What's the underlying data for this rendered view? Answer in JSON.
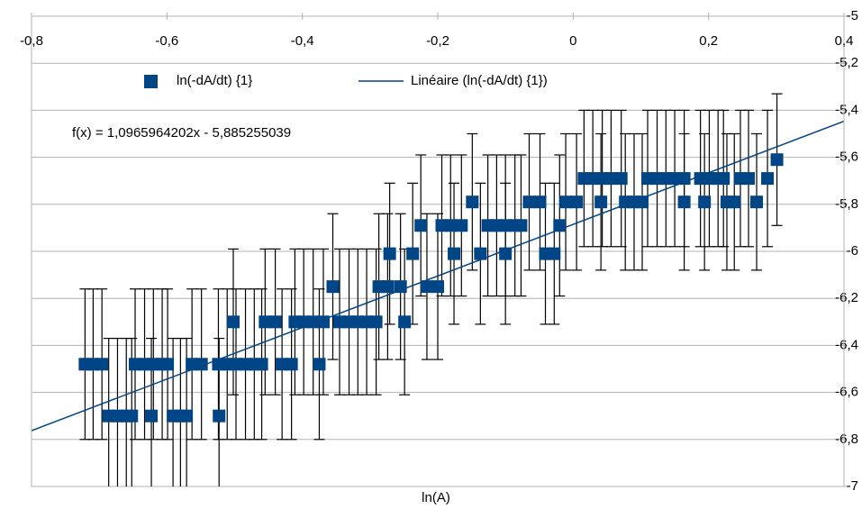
{
  "chart_data": {
    "type": "scatter",
    "xlabel": "ln(A)",
    "annotation": "f(x) = 1,0965964202x - 5,885255039",
    "xlim": [
      -0.8,
      0.4
    ],
    "ylim": [
      -7,
      -5
    ],
    "xticks": [
      {
        "value": -0.8,
        "label": "-0,8"
      },
      {
        "value": -0.6,
        "label": "-0,6"
      },
      {
        "value": -0.4,
        "label": "-0,4"
      },
      {
        "value": -0.2,
        "label": "-0,2"
      },
      0,
      {
        "value": 0.2,
        "label": "0,2"
      },
      {
        "value": 0.4,
        "label": "0,4"
      }
    ],
    "yticks": [
      -5,
      {
        "value": -5.2,
        "label": "-5,2"
      },
      {
        "value": -5.4,
        "label": "-5,4"
      },
      {
        "value": -5.6,
        "label": "-5,6"
      },
      {
        "value": -5.8,
        "label": "-5,8"
      },
      -6,
      {
        "value": -6.2,
        "label": "-6,2"
      },
      {
        "value": -6.4,
        "label": "-6,4"
      },
      {
        "value": -6.6,
        "label": "-6,6"
      },
      {
        "value": -6.8,
        "label": "-6,8"
      },
      -7
    ],
    "grid": true,
    "series": [
      {
        "name": "ln(-dA/dt) {1}",
        "color": "#004586",
        "x": [
          -0.721,
          -0.709,
          -0.696,
          -0.647,
          -0.633,
          -0.62,
          -0.607,
          -0.599,
          -0.563,
          -0.549,
          -0.524,
          -0.511,
          -0.498,
          -0.484,
          -0.471,
          -0.46,
          -0.43,
          -0.416,
          -0.375,
          -0.686,
          -0.673,
          -0.66,
          -0.652,
          -0.623,
          -0.591,
          -0.58,
          -0.571,
          -0.523,
          -0.502,
          -0.455,
          -0.44,
          -0.411,
          -0.398,
          -0.384,
          -0.369,
          -0.345,
          -0.331,
          -0.318,
          -0.305,
          -0.291,
          -0.249,
          -0.355,
          -0.287,
          -0.274,
          -0.255,
          -0.216,
          -0.2,
          -0.271,
          -0.237,
          -0.176,
          -0.137,
          -0.1,
          -0.041,
          -0.028,
          -0.225,
          -0.194,
          -0.181,
          -0.165,
          -0.126,
          -0.113,
          -0.1,
          -0.086,
          -0.077,
          -0.02,
          -0.149,
          -0.065,
          -0.049,
          -0.011,
          0.005,
          0.041,
          0.077,
          0.09,
          0.102,
          0.164,
          0.194,
          0.227,
          0.238,
          0.271,
          0.016,
          0.029,
          0.043,
          0.056,
          0.071,
          0.11,
          0.124,
          0.137,
          0.15,
          0.164,
          0.188,
          0.201,
          0.214,
          0.222,
          0.247,
          0.259,
          0.287,
          0.301
        ],
        "values": [
          -6.48,
          -6.48,
          -6.48,
          -6.48,
          -6.48,
          -6.48,
          -6.48,
          -6.48,
          -6.48,
          -6.48,
          -6.48,
          -6.48,
          -6.48,
          -6.48,
          -6.48,
          -6.48,
          -6.48,
          -6.48,
          -6.48,
          -6.7,
          -6.7,
          -6.7,
          -6.7,
          -6.7,
          -6.7,
          -6.7,
          -6.7,
          -6.7,
          -6.3,
          -6.3,
          -6.3,
          -6.3,
          -6.3,
          -6.3,
          -6.3,
          -6.3,
          -6.3,
          -6.3,
          -6.3,
          -6.3,
          -6.3,
          -6.15,
          -6.15,
          -6.15,
          -6.15,
          -6.15,
          -6.15,
          -6.01,
          -6.01,
          -6.01,
          -6.01,
          -6.01,
          -6.01,
          -6.01,
          -5.89,
          -5.89,
          -5.89,
          -5.89,
          -5.89,
          -5.89,
          -5.89,
          -5.89,
          -5.89,
          -5.89,
          -5.79,
          -5.79,
          -5.79,
          -5.79,
          -5.79,
          -5.79,
          -5.79,
          -5.79,
          -5.79,
          -5.79,
          -5.79,
          -5.79,
          -5.79,
          -5.79,
          -5.69,
          -5.69,
          -5.69,
          -5.69,
          -5.69,
          -5.69,
          -5.69,
          -5.69,
          -5.69,
          -5.69,
          -5.69,
          -5.69,
          -5.69,
          -5.69,
          -5.69,
          -5.69,
          -5.69,
          -5.61
        ],
        "errors": [
          0.32,
          0.32,
          0.32,
          0.32,
          0.32,
          0.32,
          0.32,
          0.32,
          0.32,
          0.32,
          0.32,
          0.32,
          0.32,
          0.32,
          0.32,
          0.32,
          0.32,
          0.32,
          0.32,
          0.33,
          0.33,
          0.33,
          0.33,
          0.33,
          0.33,
          0.33,
          0.33,
          0.33,
          0.31,
          0.31,
          0.31,
          0.31,
          0.31,
          0.31,
          0.31,
          0.31,
          0.31,
          0.31,
          0.31,
          0.31,
          0.31,
          0.31,
          0.31,
          0.31,
          0.31,
          0.31,
          0.31,
          0.3,
          0.3,
          0.3,
          0.3,
          0.3,
          0.3,
          0.3,
          0.3,
          0.3,
          0.3,
          0.3,
          0.3,
          0.3,
          0.3,
          0.3,
          0.3,
          0.3,
          0.29,
          0.29,
          0.29,
          0.29,
          0.29,
          0.29,
          0.29,
          0.29,
          0.29,
          0.29,
          0.29,
          0.29,
          0.29,
          0.29,
          0.29,
          0.29,
          0.29,
          0.29,
          0.29,
          0.29,
          0.29,
          0.29,
          0.29,
          0.29,
          0.29,
          0.29,
          0.29,
          0.29,
          0.29,
          0.29,
          0.29,
          0.28
        ]
      }
    ],
    "trendline": {
      "name": "Linéaire (ln(-dA/dt) {1})",
      "color": "#004586",
      "slope": 1.0965964202,
      "intercept": -5.885255039
    }
  }
}
